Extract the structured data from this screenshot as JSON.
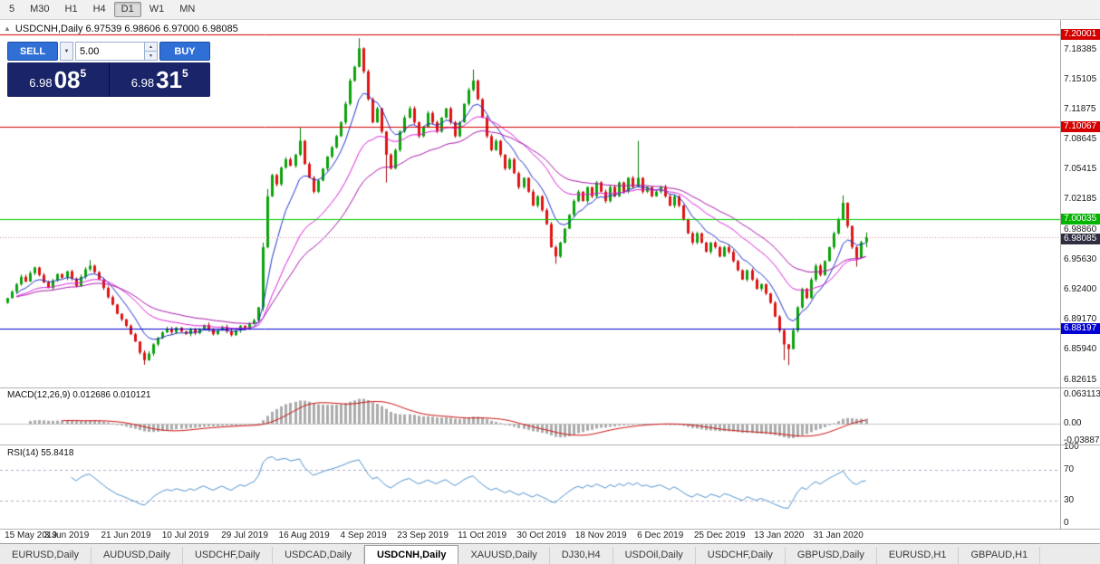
{
  "toolbar": {
    "timeframes": [
      "5",
      "M30",
      "H1",
      "H4",
      "D1",
      "W1",
      "MN"
    ],
    "active": "D1"
  },
  "chart": {
    "title": "USDCNH,Daily 6.97539 6.98606 6.97000 6.98085",
    "one_click_toggle_icon": "▲"
  },
  "trade_panel": {
    "sell_label": "SELL",
    "buy_label": "BUY",
    "volume": "5.00",
    "dropdown_icon": "▼",
    "spin_up_icon": "▲",
    "spin_down_icon": "▼",
    "sell_price": {
      "big": "6.98",
      "pips": "08",
      "sup": "5"
    },
    "buy_price": {
      "big": "6.98",
      "pips": "31",
      "sup": "5"
    }
  },
  "panes": {
    "macd_label": "MACD(12,26,9) 0.012686 0.010121",
    "rsi_label": "RSI(14) 55.8418",
    "macd_axis_labels": [
      {
        "text": "0.063113",
        "value": 0.063113
      },
      {
        "text": "0.00",
        "value": 0
      },
      {
        "text": "-0.038872",
        "value": -0.038872
      }
    ],
    "rsi_axis_labels": [
      {
        "text": "100",
        "value": 100
      },
      {
        "text": "70",
        "value": 70
      },
      {
        "text": "30",
        "value": 30
      },
      {
        "text": "0",
        "value": 0
      }
    ]
  },
  "price_axis": {
    "grid_labels": [
      "7.18385",
      "7.15105",
      "7.11875",
      "7.08645",
      "7.05415",
      "7.02185",
      "6.98860",
      "6.95630",
      "6.92400",
      "6.89170",
      "6.85940",
      "6.82615"
    ],
    "current": {
      "value": 6.98085,
      "label": "6.98085",
      "bg": "#2e2e40",
      "fg": "#ffffff"
    }
  },
  "chart_data": {
    "type": "candlestick",
    "symbol": "USDCNH",
    "period": "Daily",
    "current_bar": {
      "open": 6.97539,
      "high": 6.98606,
      "low": 6.97,
      "close": 6.98085
    },
    "y_range": [
      6.8184,
      7.2157
    ],
    "x_labels": [
      "15 May 2019",
      "3 Jun 2019",
      "21 Jun 2019",
      "10 Jul 2019",
      "29 Jul 2019",
      "16 Aug 2019",
      "4 Sep 2019",
      "23 Sep 2019",
      "11 Oct 2019",
      "30 Oct 2019",
      "18 Nov 2019",
      "6 Dec 2019",
      "25 Dec 2019",
      "13 Jan 2020",
      "31 Jan 2020"
    ],
    "days_per_label": 13,
    "first_open": 6.91,
    "closes": [
      6.915,
      6.922,
      6.93,
      6.938,
      6.933,
      6.942,
      6.948,
      6.94,
      6.932,
      6.926,
      6.934,
      6.941,
      6.937,
      6.944,
      6.936,
      6.928,
      6.938,
      6.946,
      6.95,
      6.943,
      6.935,
      6.926,
      6.916,
      6.908,
      6.898,
      6.892,
      6.885,
      6.876,
      6.868,
      6.856,
      6.848,
      6.855,
      6.865,
      6.872,
      6.878,
      6.882,
      6.878,
      6.883,
      6.879,
      6.876,
      6.881,
      6.877,
      6.882,
      6.886,
      6.881,
      6.876,
      6.88,
      6.884,
      6.879,
      6.875,
      6.88,
      6.885,
      6.882,
      6.887,
      6.891,
      6.905,
      6.97,
      7.025,
      7.048,
      7.038,
      7.056,
      7.065,
      7.058,
      7.07,
      7.085,
      7.06,
      7.045,
      7.03,
      7.042,
      7.055,
      7.068,
      7.078,
      7.09,
      7.105,
      7.125,
      7.15,
      7.165,
      7.185,
      7.16,
      7.13,
      7.105,
      7.12,
      7.095,
      7.07,
      7.055,
      7.075,
      7.095,
      7.11,
      7.12,
      7.105,
      7.09,
      7.1,
      7.115,
      7.105,
      7.095,
      7.11,
      7.12,
      7.105,
      7.09,
      7.105,
      7.125,
      7.14,
      7.15,
      7.13,
      7.11,
      7.09,
      7.075,
      7.085,
      7.07,
      7.055,
      7.065,
      7.05,
      7.035,
      7.045,
      7.03,
      7.015,
      7.025,
      7.01,
      6.995,
      6.97,
      6.96,
      6.975,
      6.99,
      7.005,
      7.02,
      7.03,
      7.02,
      7.035,
      7.025,
      7.04,
      7.03,
      7.02,
      7.035,
      7.025,
      7.04,
      7.03,
      7.045,
      7.035,
      7.045,
      7.03,
      7.035,
      7.025,
      7.03,
      7.035,
      7.025,
      7.015,
      7.025,
      7.015,
      7.0,
      6.985,
      6.975,
      6.985,
      6.975,
      6.965,
      6.975,
      6.97,
      6.96,
      6.97,
      6.965,
      6.955,
      6.945,
      6.935,
      6.945,
      6.935,
      6.925,
      6.93,
      6.92,
      6.91,
      6.895,
      6.88,
      6.865,
      6.86,
      6.88,
      6.905,
      6.925,
      6.915,
      6.935,
      6.95,
      6.94,
      6.955,
      6.97,
      6.985,
      7.0,
      7.018,
      6.993,
      6.97,
      6.9585,
      6.9755,
      6.98085
    ],
    "extremes": {
      "18": {
        "h": 6.956
      },
      "30": {
        "l": 6.843
      },
      "55": {
        "l": 6.889
      },
      "56": {
        "l": 6.901,
        "h": 6.975
      },
      "57": {
        "h": 7.033
      },
      "64": {
        "h": 7.099
      },
      "77": {
        "h": 7.196
      },
      "83": {
        "l": 7.04
      },
      "102": {
        "h": 7.162
      },
      "120": {
        "l": 6.952
      },
      "138": {
        "h": 7.085
      },
      "170": {
        "l": 6.848
      },
      "171": {
        "l": 6.8426
      },
      "183": {
        "h": 7.026
      },
      "186": {
        "l": 6.949
      },
      "188": {
        "h": 6.98606,
        "l": 6.97
      }
    },
    "colors": {
      "up": "#0ba30a",
      "up_stroke": "#067a06",
      "down": "#e01212",
      "down_stroke": "#a30b0b"
    },
    "levels": [
      {
        "price": 7.20001,
        "label": "7.20001",
        "color": "#d40000",
        "label_bg": "#d40000",
        "label_fg": "#ffffff"
      },
      {
        "price": 7.10067,
        "label": "7.10067",
        "color": "#d40000",
        "label_bg": "#d40000",
        "label_fg": "#ffffff"
      },
      {
        "price": 7.00035,
        "label": "7.00035",
        "color": "#00ce00",
        "label_bg": "#00b400",
        "label_fg": "#ffffff"
      },
      {
        "price": 6.88197,
        "label": "6.88197",
        "color": "#0000d0",
        "label_bg": "#0000d0",
        "label_fg": "#ffffff"
      }
    ],
    "moving_averages": [
      {
        "type": "EMA",
        "period": 8,
        "color": "#2233cc"
      },
      {
        "type": "EMA",
        "period": 21,
        "color": "#dd22dd"
      },
      {
        "type": "EMA",
        "period": 34,
        "color": "#aa18aa"
      }
    ],
    "macd": {
      "fast": 12,
      "slow": 26,
      "signal": 9,
      "current_main": 0.012686,
      "current_signal": 0.010121,
      "hist_color": "#ababab",
      "signal_color": "#cc1111",
      "zero_color": "#c6c6c6",
      "range": [
        -0.045,
        0.075
      ]
    },
    "rsi": {
      "period": 14,
      "current": 55.8418,
      "color": "#4f93cf",
      "levels": [
        70,
        30
      ],
      "level_color": "#b0b0c8",
      "range": [
        0,
        100
      ]
    }
  },
  "tabs": {
    "items": [
      "EURUSD,Daily",
      "AUDUSD,Daily",
      "USDCHF,Daily",
      "USDCAD,Daily",
      "USDCNH,Daily",
      "XAUUSD,Daily",
      "DJ30,H4",
      "USDOil,Daily",
      "USDCHF,Daily",
      "GBPUSD,Daily",
      "EURUSD,H1",
      "GBPAUD,H1"
    ],
    "active_index": 4
  }
}
